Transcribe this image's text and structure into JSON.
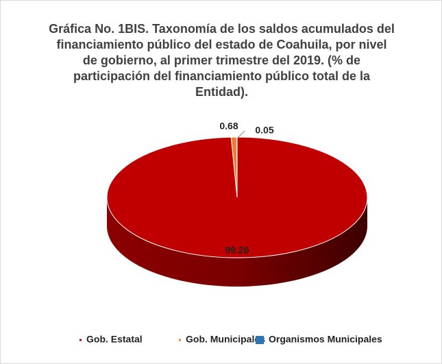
{
  "chart_data": {
    "type": "pie3d",
    "title": "Gráfica No. 1BIS. Taxonomía de los saldos acumulados del financiamiento público del estado de Coahuila, por nivel de gobierno, al primer trimestre del 2019. (% de participación del financiamiento público total de la Entidad).",
    "categories": [
      "Gob. Estatal",
      "Gob. Municipales",
      "Organismos Municipales"
    ],
    "values": [
      99.26,
      0.68,
      0.05
    ],
    "colors": [
      "#c00000",
      "#ed7d31",
      "#2e75b6"
    ],
    "legend": "bottom"
  }
}
